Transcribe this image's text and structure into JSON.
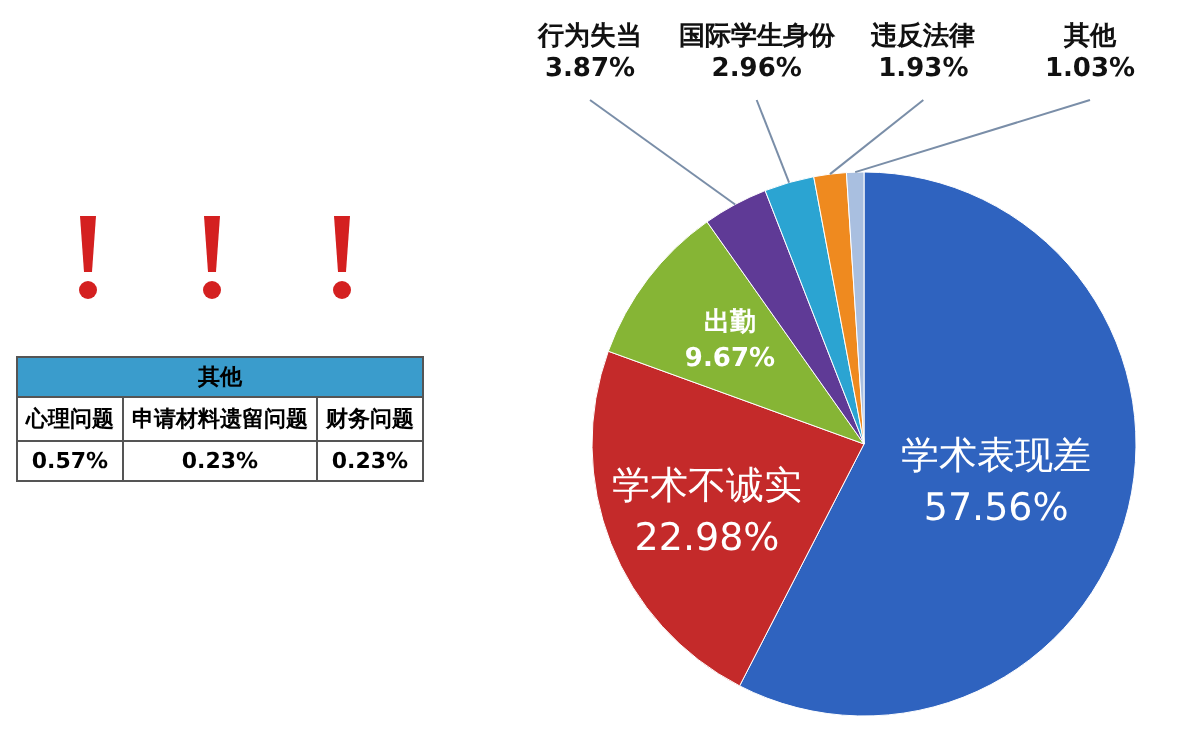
{
  "chart_data": [
    {
      "type": "pie",
      "categories": [
        "学术表现差",
        "学术不诚实",
        "出勤",
        "行为失当",
        "国际学生身份",
        "违反法律",
        "其他"
      ],
      "values": [
        57.56,
        22.98,
        9.67,
        3.87,
        2.96,
        1.93,
        1.03
      ],
      "colors": [
        "#2f63bf",
        "#c42a2a",
        "#86b535",
        "#5f3a96",
        "#2ba4d2",
        "#ef8a1f",
        "#a9bfe0"
      ],
      "value_labels": [
        "57.56%",
        "22.98%",
        "9.67%",
        "3.87%",
        "2.96%",
        "1.93%",
        "1.03%"
      ]
    },
    {
      "type": "other",
      "title": "其他",
      "categories": [
        "心理问题",
        "申请材料遗留问题",
        "财务问题"
      ],
      "values": [
        0.57,
        0.23,
        0.23
      ],
      "value_labels": [
        "0.57%",
        "0.23%",
        "0.23%"
      ]
    }
  ]
}
